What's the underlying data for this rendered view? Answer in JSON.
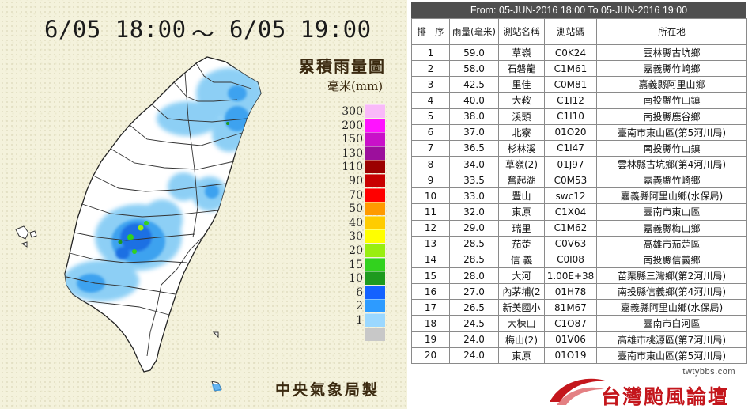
{
  "map": {
    "time_start": "6/05 18:00",
    "time_sep": "～",
    "time_end": "6/05 19:00",
    "title": "累積雨量圖",
    "unit": "毫米(mm)",
    "credit": "中央氣象局製",
    "legend": [
      {
        "label": "300",
        "color": "#f9b9f9"
      },
      {
        "label": "200",
        "color": "#ff13ff"
      },
      {
        "label": "150",
        "color": "#c911c9"
      },
      {
        "label": "130",
        "color": "#9c0f9c"
      },
      {
        "label": "110",
        "color": "#9c0000"
      },
      {
        "label": "90",
        "color": "#c80000"
      },
      {
        "label": "70",
        "color": "#ff0000"
      },
      {
        "label": "50",
        "color": "#ff9a00"
      },
      {
        "label": "40",
        "color": "#ffcc00"
      },
      {
        "label": "30",
        "color": "#ffff00"
      },
      {
        "label": "20",
        "color": "#99ee11"
      },
      {
        "label": "15",
        "color": "#32d21e"
      },
      {
        "label": "10",
        "color": "#1e9a1e"
      },
      {
        "label": "6",
        "color": "#1462ff"
      },
      {
        "label": "2",
        "color": "#2d9bff"
      },
      {
        "label": "1",
        "color": "#9bd8ff"
      },
      {
        "label": "",
        "color": "#c8c8c8"
      }
    ],
    "land_color": "#ffffff",
    "rain_light": "#87cdf5",
    "rain_mid": "#3ea2ef",
    "rain_heavy": "#1f6fe3"
  },
  "table": {
    "header": "From: 05-JUN-2016 18:00 To 05-JUN-2016 19:00",
    "columns": [
      "排　序",
      "雨量(毫米)",
      "測站名稱",
      "測站碼",
      "所在地"
    ],
    "rows": [
      [
        "1",
        "59.0",
        "草嶺",
        "C0K24",
        "雲林縣古坑鄉"
      ],
      [
        "2",
        "58.0",
        "石磐龍",
        "C1M61",
        "嘉義縣竹崎鄉"
      ],
      [
        "3",
        "42.5",
        "里佳",
        "C0M81",
        "嘉義縣阿里山鄉"
      ],
      [
        "4",
        "40.0",
        "大鞍",
        "C1I12",
        "南投縣竹山鎮"
      ],
      [
        "5",
        "38.0",
        "溪頭",
        "C1I10",
        "南投縣鹿谷鄉"
      ],
      [
        "6",
        "37.0",
        "北寮",
        "01O20",
        "臺南市東山區(第5河川局)"
      ],
      [
        "7",
        "36.5",
        "杉林溪",
        "C1I47",
        "南投縣竹山鎮"
      ],
      [
        "8",
        "34.0",
        "草嶺(2)",
        "01J97",
        "雲林縣古坑鄉(第4河川局)"
      ],
      [
        "9",
        "33.5",
        "奮起湖",
        "C0M53",
        "嘉義縣竹崎鄉"
      ],
      [
        "10",
        "33.0",
        "豐山",
        "swc12",
        "嘉義縣阿里山鄉(水保局)"
      ],
      [
        "11",
        "32.0",
        "東原",
        "C1X04",
        "臺南市東山區"
      ],
      [
        "12",
        "29.0",
        "瑞里",
        "C1M62",
        "嘉義縣梅山鄉"
      ],
      [
        "13",
        "28.5",
        "茄萣",
        "C0V63",
        "高雄市茄萣區"
      ],
      [
        "14",
        "28.5",
        "信 義",
        "C0I08",
        "南投縣信義鄉"
      ],
      [
        "15",
        "28.0",
        "大河",
        "1.00E+38",
        "苗栗縣三灣鄉(第2河川局)"
      ],
      [
        "16",
        "27.0",
        "內茅埔(2",
        "01H78",
        "南投縣信義鄉(第4河川局)"
      ],
      [
        "17",
        "26.5",
        "新美國小",
        "81M67",
        "嘉義縣阿里山鄉(水保局)"
      ],
      [
        "18",
        "24.5",
        "大棟山",
        "C1O87",
        "臺南市白河區"
      ],
      [
        "19",
        "24.0",
        "梅山(2)",
        "01V06",
        "高雄市桃源區(第7河川局)"
      ],
      [
        "20",
        "24.0",
        "東原",
        "01O19",
        "臺南市東山區(第5河川局)"
      ]
    ]
  },
  "watermark": {
    "url": "twtybbs.com",
    "text": "台灣颱風論壇",
    "color": "#c4161c"
  }
}
